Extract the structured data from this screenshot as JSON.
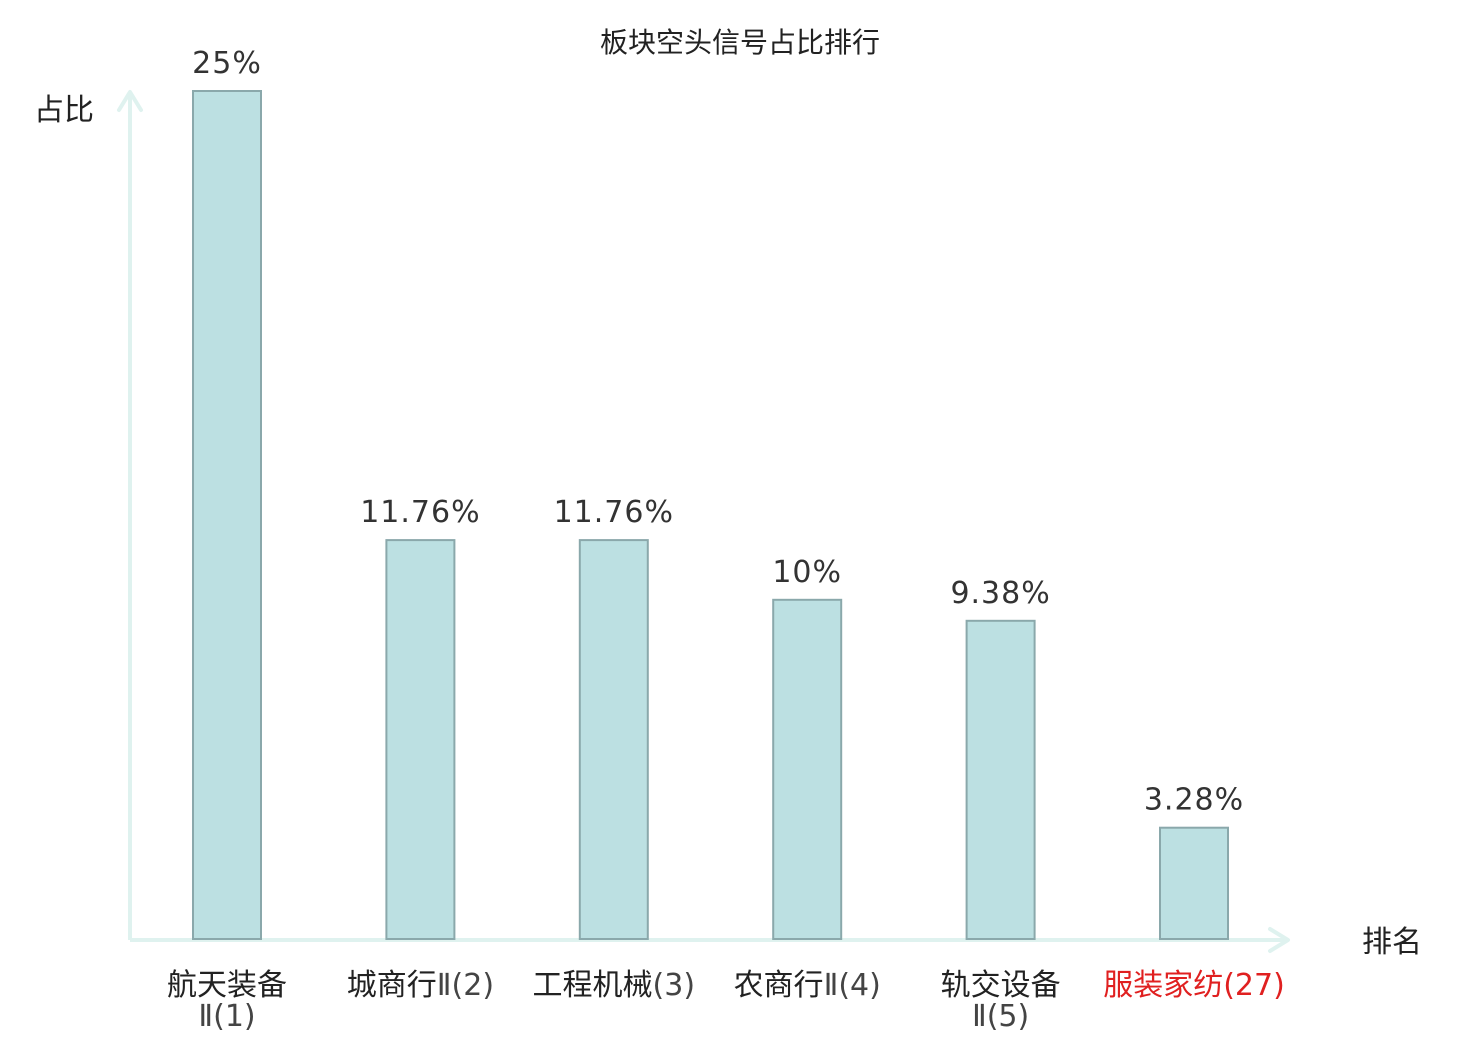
{
  "chart_data": {
    "type": "bar",
    "title": "板块空头信号占比排行",
    "xlabel": "排名",
    "ylabel": "占比",
    "ylim": [
      0,
      25
    ],
    "grid": false,
    "categories": [
      [
        "航天装备",
        "Ⅱ(1)"
      ],
      [
        "城商行Ⅱ(2)"
      ],
      [
        "工程机械(3)"
      ],
      [
        "农商行Ⅱ(4)"
      ],
      [
        "轨交设备",
        "Ⅱ(5)"
      ],
      [
        "服装家纺(27)"
      ]
    ],
    "values": [
      25,
      11.76,
      11.76,
      10,
      9.38,
      3.28
    ],
    "value_labels": [
      "25%",
      "11.76%",
      "11.76%",
      "10%",
      "9.38%",
      "3.28%"
    ],
    "highlight_index": 5,
    "colors": {
      "bar_fill": "#bce0e2",
      "bar_stroke": "#8aa8ab",
      "axis": "#dff2ef",
      "highlight_text": "#e02020",
      "text": "#222222"
    }
  }
}
